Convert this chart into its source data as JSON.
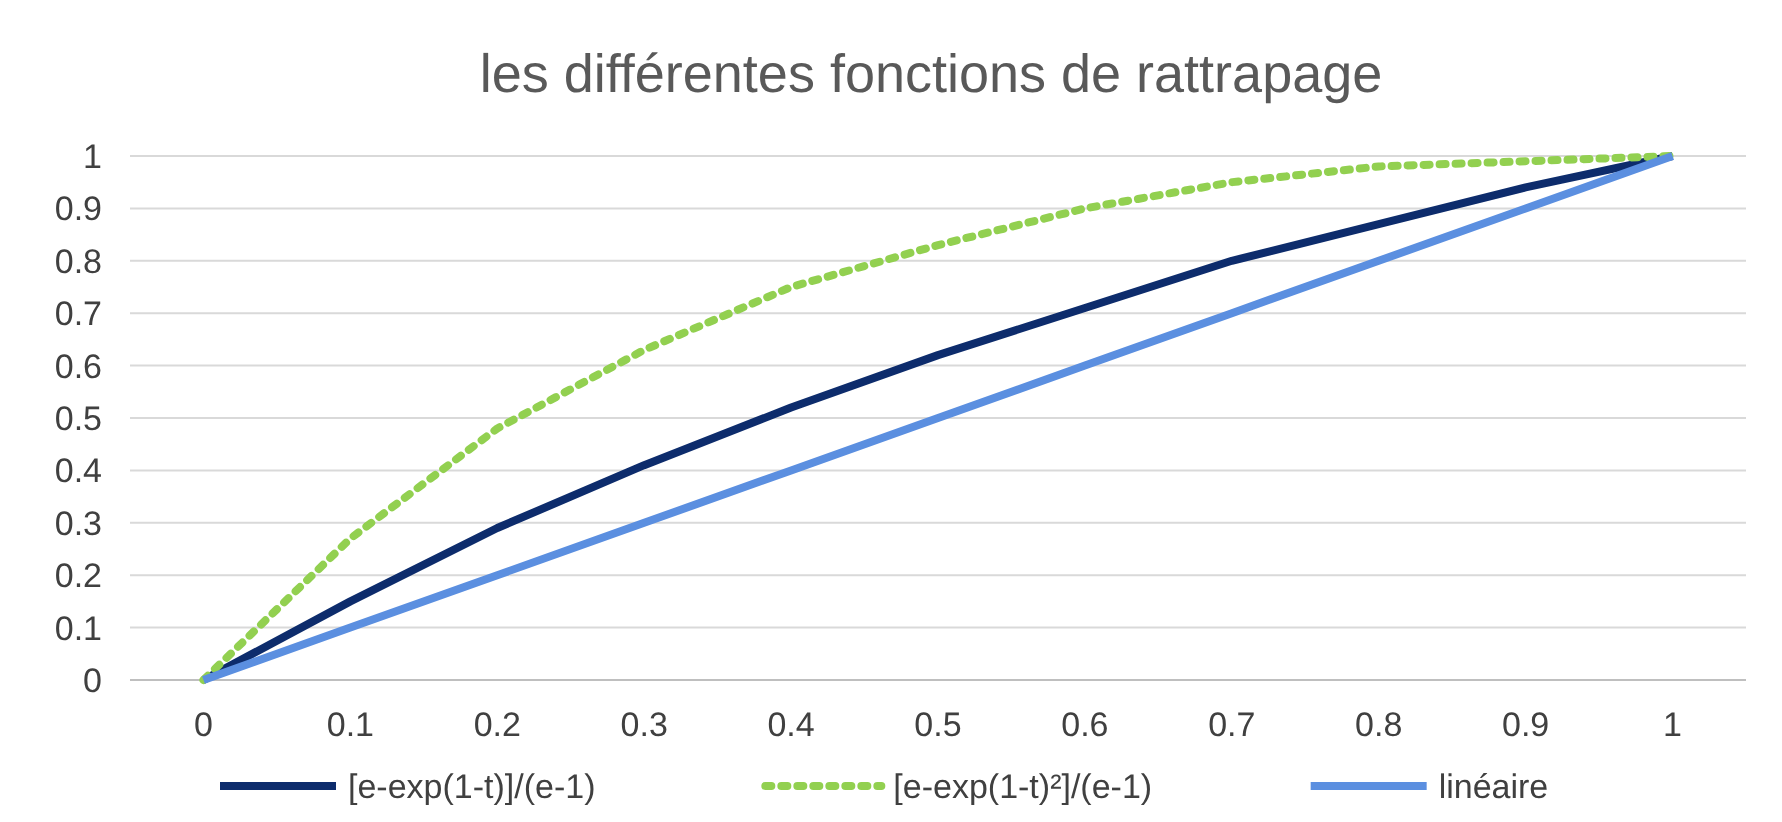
{
  "chart_data": {
    "type": "line",
    "title": "les différentes fonctions de rattrapage",
    "categories": [
      "0",
      "0.1",
      "0.2",
      "0.3",
      "0.4",
      "0.5",
      "0.6",
      "0.7",
      "0.8",
      "0.9",
      "1"
    ],
    "series": [
      {
        "name": "[e-exp(1-t)]/(e-1)",
        "color": "#0d2c6c",
        "line_style": "solid",
        "values": [
          0,
          0.15,
          0.29,
          0.41,
          0.52,
          0.62,
          0.71,
          0.8,
          0.87,
          0.94,
          1
        ]
      },
      {
        "name": "[e-exp(1-t)²]/(e-1)",
        "color": "#92d050",
        "line_style": "dotted",
        "values": [
          0,
          0.27,
          0.48,
          0.63,
          0.75,
          0.83,
          0.9,
          0.95,
          0.98,
          0.99,
          1
        ]
      },
      {
        "name": "linéaire",
        "color": "#5b8fe0",
        "line_style": "solid",
        "values": [
          0,
          0.1,
          0.2,
          0.3,
          0.4,
          0.5,
          0.6,
          0.7,
          0.8,
          0.9,
          1
        ]
      }
    ],
    "ylim": [
      0,
      1
    ],
    "yticks": [
      0,
      0.1,
      0.2,
      0.3,
      0.4,
      0.5,
      0.6,
      0.7,
      0.8,
      0.9,
      1
    ],
    "grid": "y",
    "legend": "bottom",
    "marker": "none"
  }
}
